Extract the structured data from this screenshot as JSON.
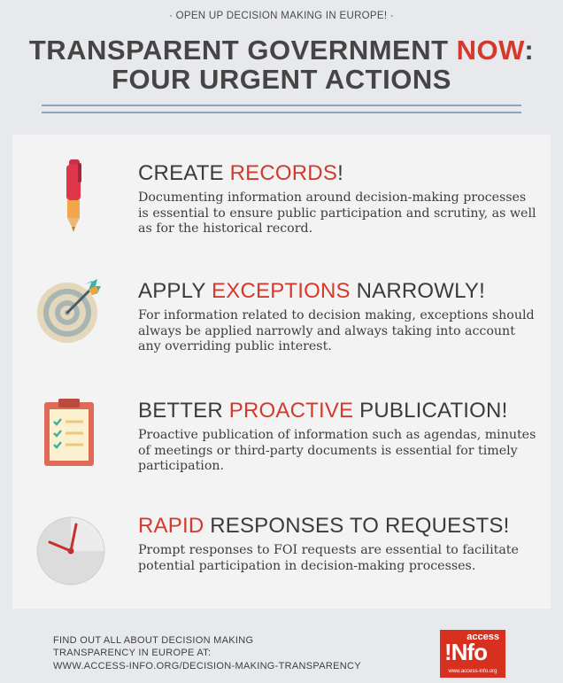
{
  "header": {
    "kicker": "· OPEN UP DECISION MAKING IN EUROPE! ·",
    "title_line1_pre": "TRANSPARENT GOVERNMENT ",
    "title_line1_red": "NOW",
    "title_line1_post": ":",
    "title_line2": "FOUR URGENT ACTIONS"
  },
  "sections": [
    {
      "icon": "pen-icon",
      "head_pre": "CREATE ",
      "head_red": "RECORDS",
      "head_post": "!",
      "body": "Documenting information around decision-making processes is essential to ensure public participation and scrutiny, as well as for the historical record."
    },
    {
      "icon": "target-icon",
      "head_pre": "APPLY ",
      "head_red": "EXCEPTIONS",
      "head_post": " NARROWLY!",
      "body": "For information related to decision making, exceptions should always be applied narrowly and always taking into account any overriding public interest."
    },
    {
      "icon": "clipboard-icon",
      "head_pre": "BETTER ",
      "head_red": "PROACTIVE",
      "head_post": " PUBLICATION!",
      "body": "Proactive publication of information such as agendas, minutes of meetings or third-party documents is essential for timely participation."
    },
    {
      "icon": "clock-icon",
      "head_pre": "",
      "head_red": "RAPID",
      "head_post": " RESPONSES TO REQUESTS!",
      "body": "Prompt responses to FOI requests are essential to facilitate potential participation in decision-making processes."
    }
  ],
  "footer": {
    "line1": "FIND OUT ALL ABOUT DECISION MAKING",
    "line2": "TRANSPARENCY IN EUROPE AT:",
    "url": "WWW.ACCESS-INFO.ORG/DECISION-MAKING-TRANSPARENCY"
  },
  "logo": {
    "top": "access",
    "main": "!Nfo",
    "bottom": "www.access-info.org"
  },
  "colors": {
    "accent_red": "#d33a2c",
    "background": "#e7e9ec",
    "panel": "#f3f3f4",
    "rule_blue": "#8ea3bf"
  }
}
